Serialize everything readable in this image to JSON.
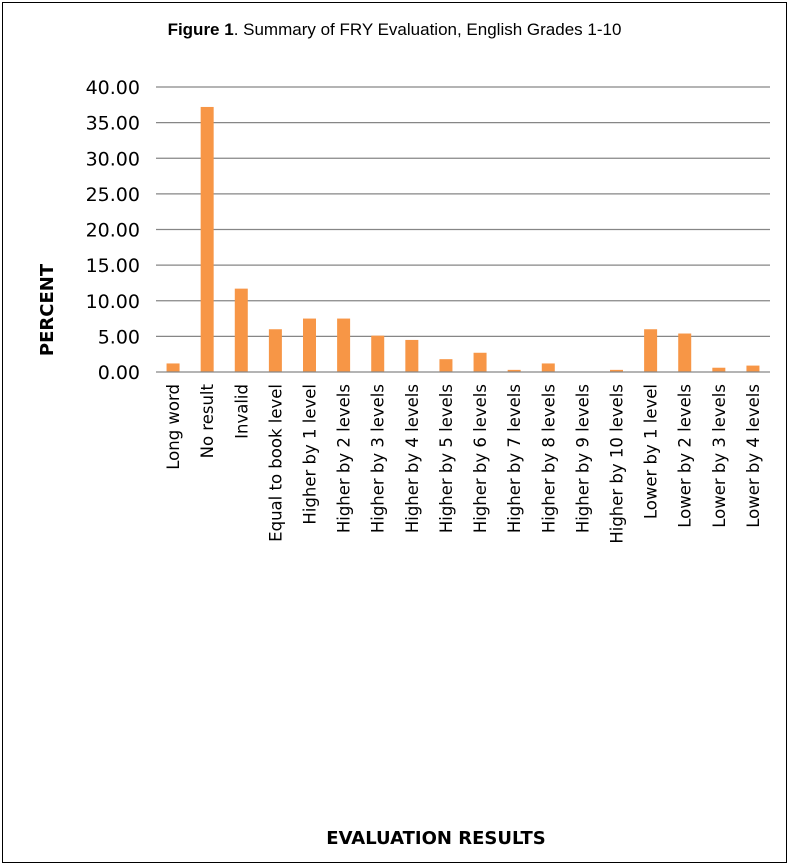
{
  "figure": {
    "label": "Figure 1",
    "caption": ". Summary of FRY Evaluation, English Grades 1-10"
  },
  "colors": {
    "bar": "#F79646",
    "grid": "#868686",
    "border": "#000000"
  },
  "chart_data": {
    "type": "bar",
    "title": "Figure 1. Summary of FRY Evaluation, English Grades 1-10",
    "xlabel": "EVALUATION RESULTS",
    "ylabel": "PERCENT",
    "ylim": [
      0,
      40
    ],
    "yticks": [
      "0.00",
      "5.00",
      "10.00",
      "15.00",
      "20.00",
      "25.00",
      "30.00",
      "35.00",
      "40.00"
    ],
    "grid": true,
    "legend": "none",
    "categories": [
      "Long word",
      "No result",
      "Invalid",
      "Equal to book level",
      "Higher by 1 level",
      "Higher by 2 levels",
      "Higher by 3 levels",
      "Higher by 4 levels",
      "Higher by 5 levels",
      "Higher by 6 levels",
      "Higher by 7 levels",
      "Higher by 8 levels",
      "Higher by 9  levels",
      "Higher by 10 levels",
      "Lower by 1 level",
      "Lower by 2 levels",
      "Lower by 3 levels",
      "Lower by 4 levels"
    ],
    "values": [
      1.2,
      37.2,
      11.7,
      6.0,
      7.5,
      7.5,
      5.1,
      4.5,
      1.8,
      2.7,
      0.3,
      1.2,
      0.0,
      0.3,
      6.0,
      5.4,
      0.6,
      0.9
    ]
  }
}
